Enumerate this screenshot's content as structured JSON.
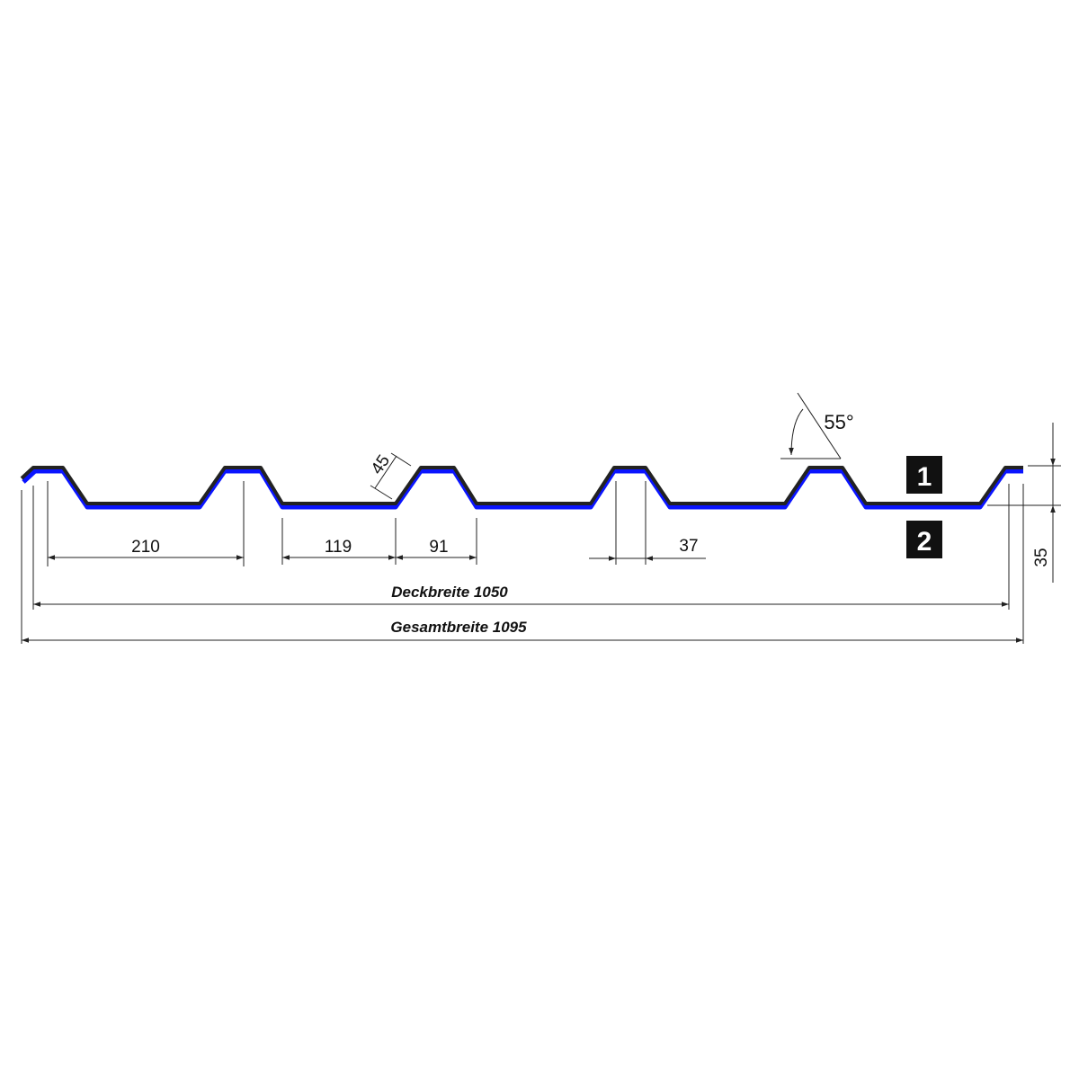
{
  "colors": {
    "coating_bottom": "#0a14ff",
    "sheet": "#222222"
  },
  "dimensions": {
    "rib_pitch": "210",
    "valley_width": "119",
    "rib_base": "91",
    "rib_top": "37",
    "web_length": "45",
    "angle": "55°",
    "height": "35",
    "cover_width": "Deckbreite 1050",
    "total_width": "Gesamtbreite 1095"
  },
  "markers": {
    "top_side": "1",
    "bottom_side": "2"
  }
}
